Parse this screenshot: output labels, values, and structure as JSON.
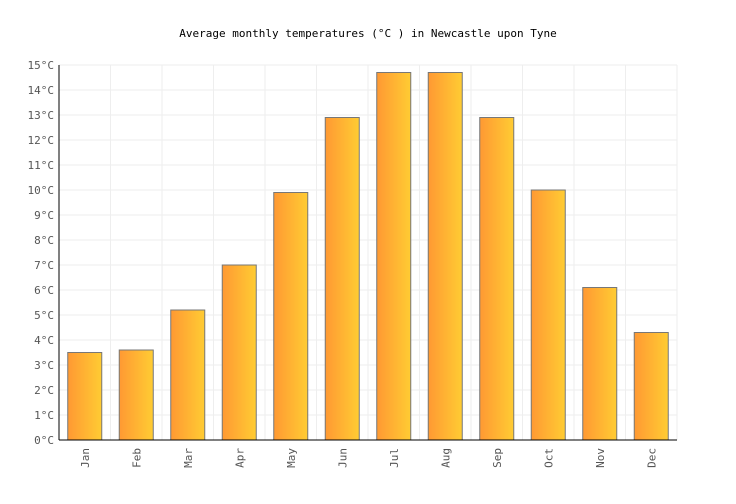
{
  "chart_data": {
    "type": "bar",
    "title": "Average monthly temperatures (°C ) in Newcastle upon Tyne",
    "categories": [
      "Jan",
      "Feb",
      "Mar",
      "Apr",
      "May",
      "Jun",
      "Jul",
      "Aug",
      "Sep",
      "Oct",
      "Nov",
      "Dec"
    ],
    "values": [
      3.5,
      3.6,
      5.2,
      7.0,
      9.9,
      12.9,
      14.7,
      14.7,
      12.9,
      10.0,
      6.1,
      4.3
    ],
    "ylim": [
      0,
      15
    ],
    "yticks": [
      "0°C",
      "1°C",
      "2°C",
      "3°C",
      "4°C",
      "5°C",
      "6°C",
      "7°C",
      "8°C",
      "9°C",
      "10°C",
      "11°C",
      "12°C",
      "13°C",
      "14°C",
      "15°C"
    ],
    "xlabel": "",
    "ylabel": "",
    "grid": true,
    "colors": {
      "bar_start": "#ff9933",
      "bar_end": "#ffcc33",
      "bar_stroke": "#777777",
      "grid": "#eeeeee",
      "axis": "#000000",
      "tick_text": "#555555"
    }
  }
}
